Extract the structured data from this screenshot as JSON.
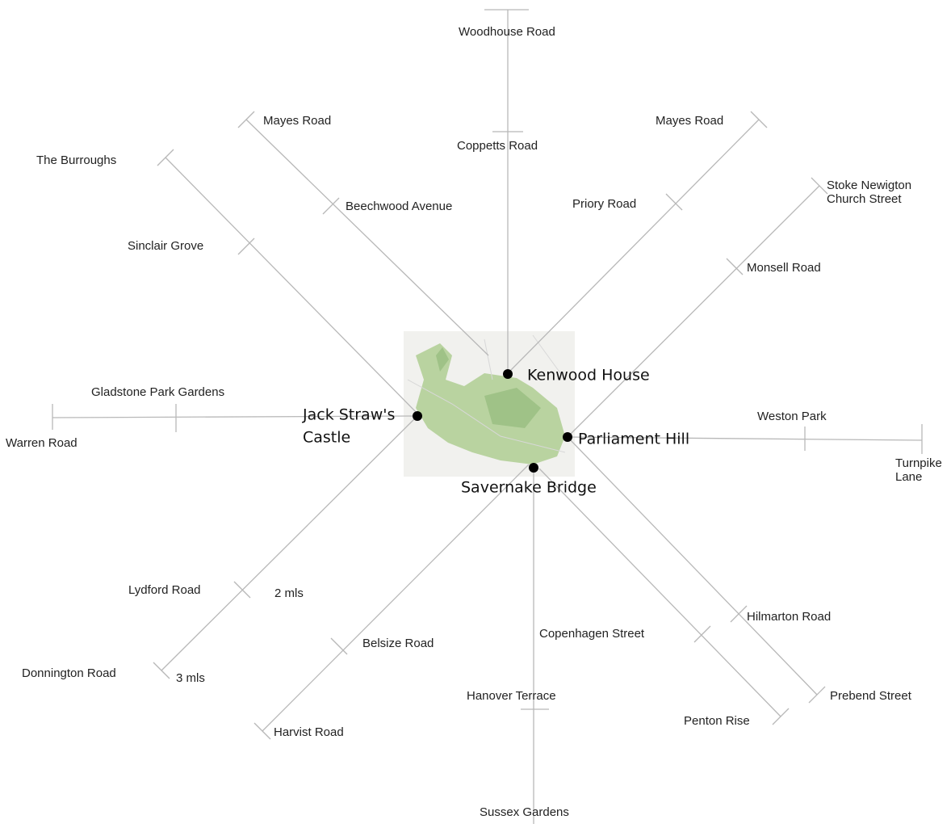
{
  "landmarks": [
    "Kenwood House",
    [
      "Jack Straw's",
      "Castle"
    ],
    "Parliament Hill",
    "Savernake Bridge"
  ],
  "roads": [
    "Woodhouse Road",
    "Coppetts Road",
    "Mayes Road",
    "Beechwood Avenue",
    "The Burroughs",
    "Sinclair Grove",
    "Gladstone Park Gardens",
    "Warren Road",
    "Mayes Road",
    "Priory Road",
    [
      "Stoke Newigton",
      "Church Street"
    ],
    "Monsell Road",
    "Weston Park",
    [
      "Turnpike",
      "Lane"
    ],
    "Lydford Road",
    "Donnington Road",
    "Belsize Road",
    "Harvist Road",
    "Copenhagen Street",
    "Hanover Terrace",
    "Sussex Gardens",
    "Hilmarton Road",
    "Prebend Street",
    "Penton Rise"
  ],
  "distances": [
    "2 mls",
    "3 mls"
  ]
}
